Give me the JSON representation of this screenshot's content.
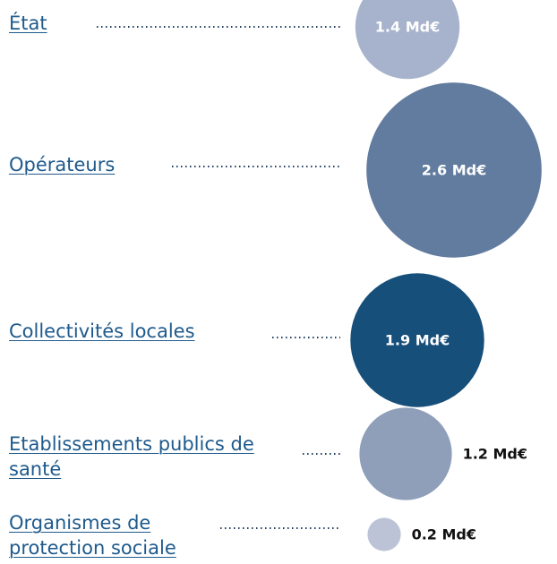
{
  "chart_data": {
    "type": "bubble",
    "categories": [
      "État",
      "Opérateurs",
      "Collectivités locales",
      "Etablissements publics de santé",
      "Organismes de protection sociale"
    ],
    "values": [
      1.4,
      2.6,
      1.9,
      1.2,
      0.2
    ],
    "value_labels": [
      "1.4 Md€",
      "2.6 Md€",
      "1.9 Md€",
      "1.2 Md€",
      "0.2 Md€"
    ],
    "colors": [
      "#a7b3cc",
      "#627c9f",
      "#164f7a",
      "#8f9fba",
      "#bcc3d6"
    ]
  }
}
